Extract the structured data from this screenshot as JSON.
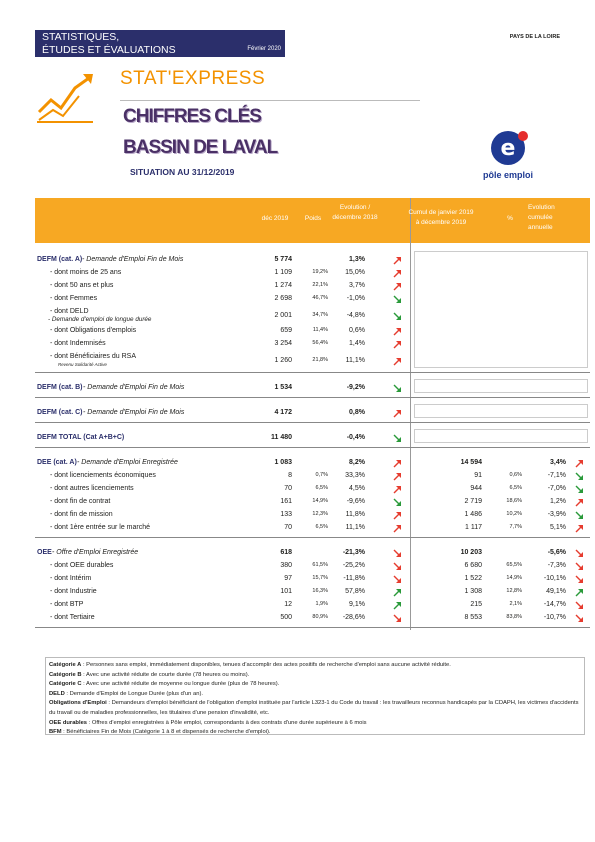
{
  "header": {
    "band_line1": "STATISTIQUES,",
    "band_line2": "ÉTUDES ET ÉVALUATIONS",
    "date": "Février 2020",
    "region": "PAYS DE LA LOIRE",
    "brand": "STAT'EXPRESS",
    "title1": "CHIFFRES CLÉS",
    "title2": "BASSIN DE LAVAL",
    "subtitle": "SITUATION AU 31/12/2019",
    "logo_text": "pôle emploi"
  },
  "columns": [
    "déc 2019",
    "Poids",
    "Evolution / décembre 2018",
    "Cumul de janvier 2019 à décembre 2019",
    "%",
    "Evolution cumulée annuelle"
  ],
  "sections": [
    {
      "rows": [
        {
          "label": "DEFM (cat. A)",
          "detail": " - Demande d'Emploi Fin de Mois",
          "value": "5 774",
          "change": "1,3%"
        },
        {
          "label": "- dont moins de 25 ans",
          "value": "1 109",
          "weight": "19,2%",
          "change": "15,0%"
        },
        {
          "label": "- dont 50 ans et plus",
          "value": "1 274",
          "weight": "22,1%",
          "change": "3,7%"
        },
        {
          "label": "- dont Femmes",
          "value": "2 698",
          "weight": "46,7%",
          "change": "-1,0%"
        },
        {
          "label": "- dont DELD",
          "detail": " - Demande d'emploi de longue durée",
          "value": "2 001",
          "weight": "34,7%",
          "change": "-4,8%"
        },
        {
          "label": "- dont Obligations d'emplois",
          "value": "659",
          "weight": "11,4%",
          "change": "0,6%"
        },
        {
          "label": "- dont Indemnisés",
          "value": "3 254",
          "weight": "56,4%",
          "change": "1,4%"
        },
        {
          "label": "- dont Bénéficiaires du RSA",
          "note": "Revenu Solidarité Active",
          "value": "1 260",
          "weight": "21,8%",
          "change": "11,1%"
        }
      ]
    },
    {
      "rows": [
        {
          "label": "DEFM (cat. B)",
          "detail": " - Demande d'Emploi Fin de Mois",
          "value": "1 534",
          "change": "-9,2%"
        }
      ]
    },
    {
      "rows": [
        {
          "label": "DEFM (cat. C)",
          "detail": " - Demande d'Emploi Fin de Mois",
          "value": "4 172",
          "change": "0,8%"
        }
      ]
    },
    {
      "rows": [
        {
          "label": "DEFM TOTAL (Cat A+B+C)",
          "value": "11 480",
          "change": "-0,4%"
        }
      ]
    },
    {
      "rows": [
        {
          "label": "DEE (cat. A)",
          "detail": " - Demande d'Emploi Enregistrée",
          "value": "1 083",
          "change": "8,2%",
          "cumul": "14 594",
          "cumul_change": "3,4%"
        },
        {
          "label": "- dont licenciements économiques",
          "value": "8",
          "weight": "0,7%",
          "change": "33,3%",
          "cumul": "91",
          "cumul_weight": "0,6%",
          "cumul_change": "-7,1%"
        },
        {
          "label": "- dont autres licenciements",
          "value": "70",
          "weight": "6,5%",
          "change": "4,5%",
          "cumul": "944",
          "cumul_weight": "6,5%",
          "cumul_change": "-7,0%"
        },
        {
          "label": "- dont fin de contrat",
          "value": "161",
          "weight": "14,9%",
          "change": "-9,6%",
          "cumul": "2 719",
          "cumul_weight": "18,6%",
          "cumul_change": "1,2%"
        },
        {
          "label": "- dont fin de mission",
          "value": "133",
          "weight": "12,3%",
          "change": "11,8%",
          "cumul": "1 486",
          "cumul_weight": "10,2%",
          "cumul_change": "-3,9%"
        },
        {
          "label": "- dont 1ère entrée sur le marché",
          "value": "70",
          "weight": "6,5%",
          "change": "11,1%",
          "cumul": "1 117",
          "cumul_weight": "7,7%",
          "cumul_change": "5,1%"
        }
      ]
    },
    {
      "rows": [
        {
          "label": "OEE",
          "detail": " - Offre d'Emploi Enregistrée",
          "value": "618",
          "change": "-21,3%",
          "cumul": "10 203",
          "cumul_change": "-5,6%"
        },
        {
          "label": "- dont OEE durables",
          "value": "380",
          "weight": "61,5%",
          "change": "-25,2%",
          "cumul": "6 680",
          "cumul_weight": "65,5%",
          "cumul_change": "-7,3%"
        },
        {
          "label": "- dont Intérim",
          "value": "97",
          "weight": "15,7%",
          "change": "-11,8%",
          "cumul": "1 522",
          "cumul_weight": "14,9%",
          "cumul_change": "-10,1%"
        },
        {
          "label": "- dont Industrie",
          "value": "101",
          "weight": "16,3%",
          "change": "57,8%",
          "cumul": "1 308",
          "cumul_weight": "12,8%",
          "cumul_change": "49,1%"
        },
        {
          "label": "- dont BTP",
          "value": "12",
          "weight": "1,9%",
          "change": "9,1%",
          "cumul": "215",
          "cumul_weight": "2,1%",
          "cumul_change": "-14,7%"
        },
        {
          "label": "- dont Tertiaire",
          "value": "500",
          "weight": "80,9%",
          "change": "-28,6%",
          "cumul": "8 553",
          "cumul_weight": "83,8%",
          "cumul_change": "-10,7%"
        }
      ]
    }
  ],
  "notes": [
    {
      "term": "Catégorie A",
      "text": " : Personnes sans emploi, immédiatement disponibles, tenues d'accomplir des actes positifs de recherche d'emploi sans aucune activité réduite."
    },
    {
      "term": "Catégorie B",
      "text": " : Avec une activité réduite de courte durée (78 heures ou moins)."
    },
    {
      "term": "Catégorie C",
      "text": " : Avec une activité réduite de moyenne ou longue durée (plus de 78 heures)."
    },
    {
      "term": "DELD",
      "text": " : Demande d'Emploi de Longue Durée (plus d'un an)."
    },
    {
      "term": "Obligations d'Emploi",
      "text": " : Demandeurs d'emploi bénéficiant de l'obligation d'emploi instituée par l'article L323-1 du Code du travail : les travailleurs reconnus handicapés par la CDAPH, les victimes d'accidents du travail ou de maladies professionnelles, les titulaires d'une pension d'invalidité, etc."
    },
    {
      "term": "OEE durables",
      "text": " : Offres d'emploi enregistrées à Pôle emploi, correspondants à des contrats d'une durée supérieure à 6 mois"
    },
    {
      "term": "BFM",
      "text": " : Bénéficiaires Fin de Mois (Catégorie 1 à 8 et dispensés de recherche d'emploi)."
    }
  ]
}
